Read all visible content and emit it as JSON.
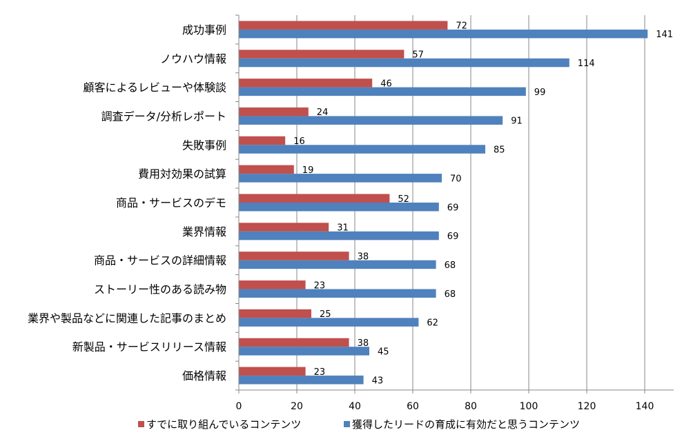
{
  "chart_data": {
    "type": "bar",
    "orientation": "horizontal",
    "categories": [
      "成功事例",
      "ノウハウ情報",
      "顧客によるレビューや体験談",
      "調査データ/分析レポート",
      "失敗事例",
      "費用対効果の試算",
      "商品・サービスのデモ",
      "業界情報",
      "商品・サービスの詳細情報",
      "ストーリー性のある読み物",
      "業界や製品などに関連した記事のまとめ",
      "新製品・サービスリリース情報",
      "価格情報"
    ],
    "series": [
      {
        "name": "すでに取り組んでいるコンテンツ",
        "color": "#C0504D",
        "values": [
          72,
          57,
          46,
          24,
          16,
          19,
          52,
          31,
          38,
          23,
          25,
          38,
          23
        ]
      },
      {
        "name": "獲得したリードの育成に有効だと思うコンテンツ",
        "color": "#4F81BD",
        "values": [
          141,
          114,
          99,
          91,
          85,
          70,
          69,
          69,
          68,
          68,
          62,
          45,
          43
        ]
      }
    ],
    "xlim": [
      0,
      150
    ],
    "xticks": [
      0,
      20,
      40,
      60,
      80,
      100,
      120,
      140
    ],
    "grid": true,
    "legend_position": "bottom"
  }
}
